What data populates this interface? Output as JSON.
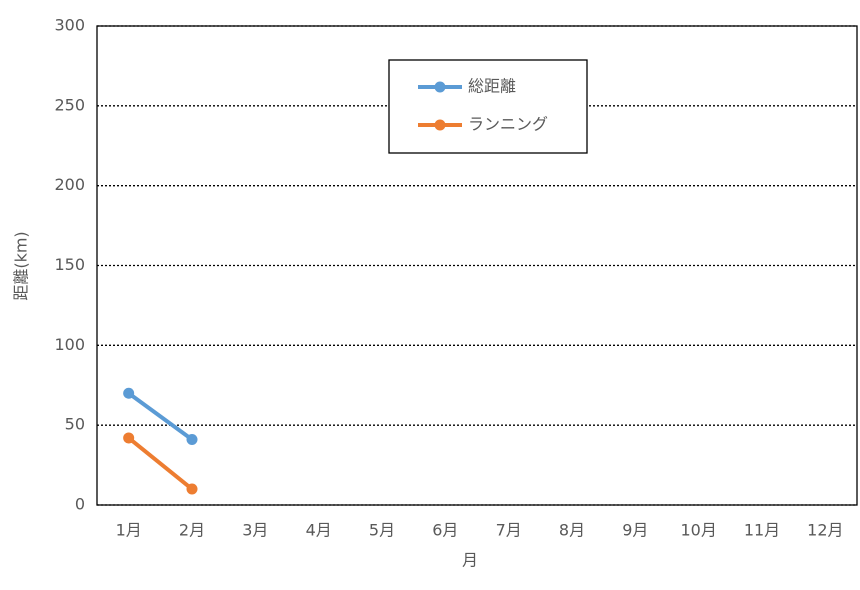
{
  "chart_data": {
    "type": "line",
    "y_label": "距離(km)",
    "x_label": "月",
    "categories": [
      "1月",
      "2月",
      "3月",
      "4月",
      "5月",
      "6月",
      "7月",
      "8月",
      "9月",
      "10月",
      "11月",
      "12月"
    ],
    "series": [
      {
        "name": "総距離",
        "color": "#5b9bd5",
        "values": [
          70,
          41,
          null,
          null,
          null,
          null,
          null,
          null,
          null,
          null,
          null,
          null
        ]
      },
      {
        "name": "ランニング",
        "color": "#ed7d31",
        "values": [
          42,
          10,
          null,
          null,
          null,
          null,
          null,
          null,
          null,
          null,
          null,
          null
        ]
      }
    ],
    "ylim": [
      0,
      300
    ],
    "yticks": [
      0,
      50,
      100,
      150,
      200,
      250,
      300
    ],
    "grid": true,
    "legend": "top-center"
  }
}
